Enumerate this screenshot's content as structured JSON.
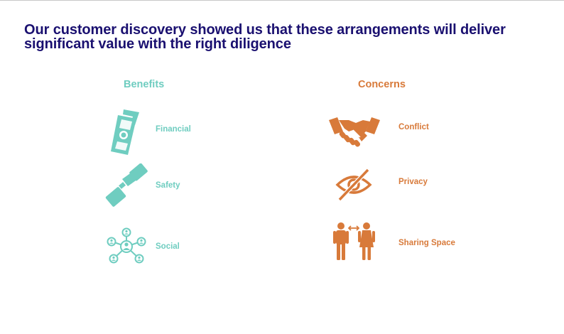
{
  "title": "Our customer discovery showed us that these arrangements will deliver significant value with the right diligence",
  "colors": {
    "title": "#1a1070",
    "benefit": "#6fcdc0",
    "concern": "#d87a3a"
  },
  "benefits": {
    "heading": "Benefits",
    "items": [
      {
        "label": "Financial",
        "icon": "money-icon"
      },
      {
        "label": "Safety",
        "icon": "seatbelt-icon"
      },
      {
        "label": "Social",
        "icon": "network-icon"
      }
    ]
  },
  "concerns": {
    "heading": "Concerns",
    "items": [
      {
        "label": "Conflict",
        "icon": "handshake-icon"
      },
      {
        "label": "Privacy",
        "icon": "eye-slash-icon"
      },
      {
        "label": "Sharing Space",
        "icon": "people-icon"
      }
    ]
  }
}
